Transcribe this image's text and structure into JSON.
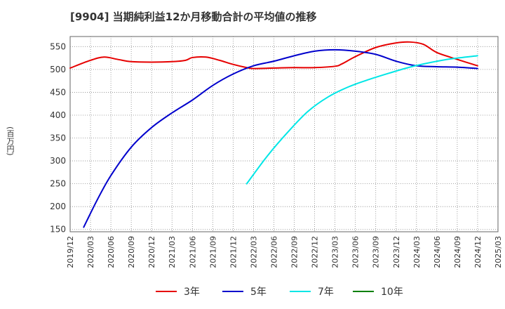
{
  "chart_data": {
    "type": "line",
    "title": "[9904]  当期純利益12か月移動合計の平均値の推移",
    "ylabel": "(百万円)",
    "xlabel": "",
    "ylim": [
      145,
      572
    ],
    "yticks": [
      150,
      200,
      250,
      300,
      350,
      400,
      450,
      500,
      550
    ],
    "xlim": [
      "2019/12",
      "2025/03"
    ],
    "xticks": [
      "2019/12",
      "2020/03",
      "2020/06",
      "2020/09",
      "2020/12",
      "2021/03",
      "2021/06",
      "2021/09",
      "2021/12",
      "2022/03",
      "2022/06",
      "2022/09",
      "2022/12",
      "2023/03",
      "2023/06",
      "2023/09",
      "2023/12",
      "2024/03",
      "2024/06",
      "2024/09",
      "2024/12",
      "2025/03"
    ],
    "grid": true,
    "legend_position": "bottom",
    "series": [
      {
        "name": "3年",
        "color": "#e60000",
        "points": [
          [
            "2019/12",
            503
          ],
          [
            "2020/03",
            520
          ],
          [
            "2020/05",
            527
          ],
          [
            "2020/07",
            522
          ],
          [
            "2020/09",
            517
          ],
          [
            "2020/12",
            516
          ],
          [
            "2021/03",
            517
          ],
          [
            "2021/05",
            520
          ],
          [
            "2021/06",
            526
          ],
          [
            "2021/08",
            527
          ],
          [
            "2021/10",
            520
          ],
          [
            "2021/12",
            511
          ],
          [
            "2022/02",
            504
          ],
          [
            "2022/03",
            502
          ],
          [
            "2022/06",
            503
          ],
          [
            "2022/09",
            504
          ],
          [
            "2022/12",
            504
          ],
          [
            "2023/03",
            507
          ],
          [
            "2023/04",
            512
          ],
          [
            "2023/06",
            528
          ],
          [
            "2023/09",
            548
          ],
          [
            "2023/12",
            558
          ],
          [
            "2024/02",
            560
          ],
          [
            "2024/04",
            555
          ],
          [
            "2024/06",
            537
          ],
          [
            "2024/09",
            522
          ],
          [
            "2024/12",
            508
          ]
        ]
      },
      {
        "name": "5年",
        "color": "#0000cc",
        "points": [
          [
            "2020/02",
            155
          ],
          [
            "2020/04",
            215
          ],
          [
            "2020/06",
            268
          ],
          [
            "2020/09",
            330
          ],
          [
            "2020/12",
            373
          ],
          [
            "2021/03",
            405
          ],
          [
            "2021/06",
            433
          ],
          [
            "2021/09",
            465
          ],
          [
            "2021/12",
            490
          ],
          [
            "2022/03",
            508
          ],
          [
            "2022/06",
            518
          ],
          [
            "2022/09",
            530
          ],
          [
            "2022/12",
            540
          ],
          [
            "2023/03",
            543
          ],
          [
            "2023/06",
            540
          ],
          [
            "2023/09",
            533
          ],
          [
            "2023/12",
            518
          ],
          [
            "2024/03",
            508
          ],
          [
            "2024/06",
            506
          ],
          [
            "2024/09",
            505
          ],
          [
            "2024/12",
            502
          ]
        ]
      },
      {
        "name": "7年",
        "color": "#00e6e6",
        "points": [
          [
            "2022/02",
            250
          ],
          [
            "2022/05",
            310
          ],
          [
            "2022/08",
            362
          ],
          [
            "2022/11",
            408
          ],
          [
            "2023/02",
            440
          ],
          [
            "2023/05",
            462
          ],
          [
            "2023/08",
            478
          ],
          [
            "2023/11",
            492
          ],
          [
            "2024/02",
            505
          ],
          [
            "2024/05",
            515
          ],
          [
            "2024/08",
            523
          ],
          [
            "2024/12",
            530
          ]
        ]
      },
      {
        "name": "10年",
        "color": "#008000",
        "points": []
      }
    ]
  }
}
